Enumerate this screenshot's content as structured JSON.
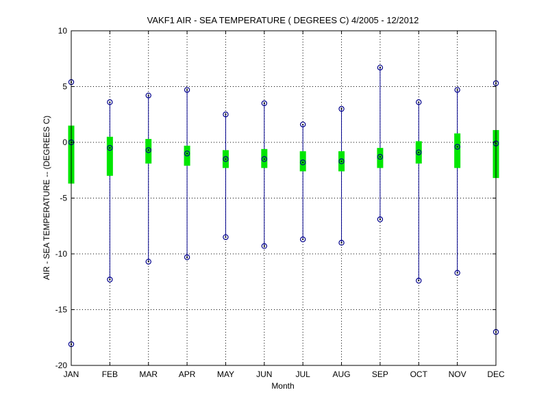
{
  "chart_data": {
    "type": "box",
    "title": "VAKF1  AIR - SEA TEMPERATURE ( DEGREES C) 4/2005 - 12/2012",
    "xlabel": "Month",
    "ylabel": "AIR - SEA TEMPERATURE -- (DEGREES C)",
    "ylim": [
      -20,
      10
    ],
    "yticks": [
      10,
      5,
      0,
      -5,
      -10,
      -15,
      -20
    ],
    "grid": true,
    "categories": [
      "JAN",
      "FEB",
      "MAR",
      "APR",
      "MAY",
      "JUN",
      "JUL",
      "AUG",
      "SEP",
      "OCT",
      "NOV",
      "DEC"
    ],
    "max": [
      5.4,
      3.6,
      4.2,
      4.7,
      2.5,
      3.5,
      1.6,
      3.0,
      6.7,
      3.6,
      4.7,
      5.3
    ],
    "q3": [
      1.5,
      0.5,
      0.3,
      -0.3,
      -0.7,
      -0.6,
      -0.8,
      -0.8,
      -0.5,
      0.1,
      0.8,
      1.1
    ],
    "median": [
      0.0,
      -0.5,
      -0.7,
      -1.0,
      -1.5,
      -1.5,
      -1.8,
      -1.7,
      -1.3,
      -0.9,
      -0.4,
      -0.1
    ],
    "q1": [
      -3.7,
      -3.0,
      -1.9,
      -2.1,
      -2.3,
      -2.3,
      -2.6,
      -2.6,
      -2.3,
      -1.9,
      -2.3,
      -3.2
    ],
    "min": [
      -18.1,
      -12.3,
      -10.7,
      -10.3,
      -8.5,
      -9.3,
      -8.7,
      -9.0,
      -6.9,
      -12.4,
      -11.7,
      -17.0
    ],
    "colors": {
      "whisker": "#00008b",
      "box": "#00e600",
      "marker": "#00008b"
    }
  }
}
